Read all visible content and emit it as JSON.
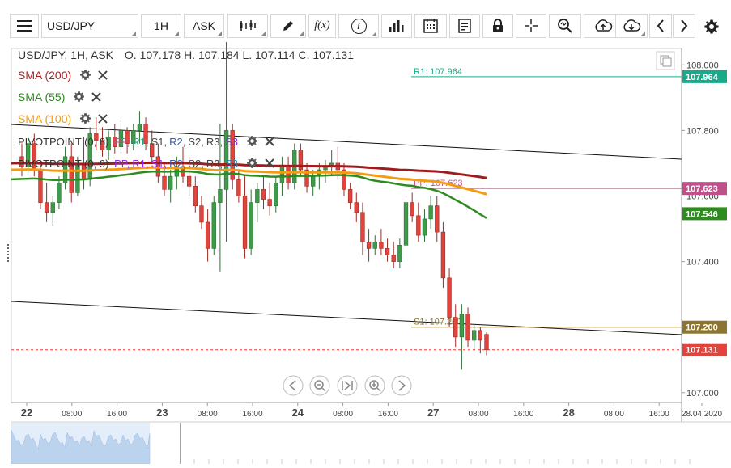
{
  "toolbar": {
    "symbol": "USD/JPY",
    "timeframe": "1H",
    "price_type": "ASK",
    "func_label": "f(x)",
    "info_label": "i"
  },
  "header": {
    "symbol_line": "USD/JPY, 1H, ASK",
    "ohlc": "O. 107.178 H. 107.184 L. 107.114 C. 107.131"
  },
  "indicators": [
    {
      "label": "SMA (200)",
      "color": "#b22222"
    },
    {
      "label": "SMA (55)",
      "color": "#2e8b1f"
    },
    {
      "label": "SMA (100)",
      "color": "#f39c12"
    }
  ],
  "pivots": [
    {
      "label": "PIVOTPOINT (0, 8)",
      "items": [
        "PP,",
        "R1,",
        "S1,",
        "R2,",
        "S2,",
        "R3,",
        "S3"
      ],
      "colors": [
        "#c0508a",
        "#1aaa8a",
        "#444",
        "#3a5ba0",
        "#444",
        "#444",
        "#8a2be2"
      ]
    },
    {
      "label": "PIVOTPOINT (0, 9)",
      "items": [
        "PP,",
        "R1,",
        "S1,",
        "R2,",
        "S2,",
        "R3,",
        "S3"
      ],
      "colors": [
        "#8a2be2",
        "#8a2be2",
        "#8a2be2",
        "#3a5ba0",
        "#444",
        "#444",
        "#1a8fbf"
      ]
    }
  ],
  "chart_data": {
    "type": "candlestick",
    "symbol": "USD/JPY",
    "ylim": [
      106.97,
      108.05
    ],
    "y_ticks": [
      "108.000",
      "107.800",
      "107.600",
      "107.400",
      "107.200",
      "107.000"
    ],
    "y_tick_values": [
      108.0,
      107.8,
      107.6,
      107.4,
      107.2,
      107.0
    ],
    "x_ticks": [
      "22",
      "08:00",
      "16:00",
      "23",
      "08:00",
      "16:00",
      "24",
      "08:00",
      "16:00",
      "27",
      "08:00",
      "16:00",
      "28",
      "08:00",
      "16:00",
      "28.04.2020"
    ],
    "x_tick_major": [
      true,
      false,
      false,
      true,
      false,
      false,
      true,
      false,
      false,
      true,
      false,
      false,
      true,
      false,
      false,
      false
    ],
    "price_labels": [
      {
        "value": "107.964",
        "num": 107.964,
        "color": "#1aaa8a"
      },
      {
        "value": "107.623",
        "num": 107.623,
        "color": "#c0508a"
      },
      {
        "value": "107.546",
        "num": 107.546,
        "color": "#2e8b1f"
      },
      {
        "value": "107.200",
        "num": 107.2,
        "color": "#8b7530"
      },
      {
        "value": "107.131",
        "num": 107.131,
        "color": "#e0443c"
      }
    ],
    "level_labels": [
      {
        "text": "R1: 107.964",
        "num": 107.964,
        "color": "#1aaa8a"
      },
      {
        "text": "PP: 107.623",
        "num": 107.623,
        "color": "#c0508a"
      },
      {
        "text": "S1: 107.200",
        "num": 107.2,
        "color": "#8b7530"
      }
    ],
    "up_color": "#3d9b4a",
    "down_color": "#e0443c",
    "candles": [
      [
        107.72,
        107.76,
        107.66,
        107.69
      ],
      [
        107.69,
        107.78,
        107.67,
        107.76
      ],
      [
        107.76,
        107.79,
        107.66,
        107.68
      ],
      [
        107.68,
        107.71,
        107.56,
        107.58
      ],
      [
        107.58,
        107.64,
        107.52,
        107.55
      ],
      [
        107.55,
        107.6,
        107.51,
        107.58
      ],
      [
        107.58,
        107.66,
        107.56,
        107.64
      ],
      [
        107.64,
        107.75,
        107.62,
        107.72
      ],
      [
        107.72,
        107.76,
        107.58,
        107.61
      ],
      [
        107.61,
        107.72,
        107.6,
        107.7
      ],
      [
        107.7,
        107.78,
        107.62,
        107.65
      ],
      [
        107.65,
        107.81,
        107.63,
        107.79
      ],
      [
        107.79,
        107.84,
        107.74,
        107.77
      ],
      [
        107.77,
        107.81,
        107.72,
        107.74
      ],
      [
        107.74,
        107.8,
        107.71,
        107.78
      ],
      [
        107.78,
        107.82,
        107.73,
        107.75
      ],
      [
        107.75,
        107.83,
        107.73,
        107.8
      ],
      [
        107.8,
        107.81,
        107.73,
        107.76
      ],
      [
        107.76,
        107.82,
        107.74,
        107.8
      ],
      [
        107.8,
        107.86,
        107.76,
        107.82
      ],
      [
        107.82,
        107.84,
        107.74,
        107.76
      ],
      [
        107.76,
        107.8,
        107.7,
        107.72
      ],
      [
        107.72,
        107.76,
        107.64,
        107.66
      ],
      [
        107.66,
        107.7,
        107.6,
        107.62
      ],
      [
        107.62,
        107.68,
        107.58,
        107.66
      ],
      [
        107.66,
        107.72,
        107.62,
        107.69
      ],
      [
        107.69,
        107.75,
        107.64,
        107.66
      ],
      [
        107.66,
        107.72,
        107.6,
        107.63
      ],
      [
        107.63,
        107.66,
        107.55,
        107.57
      ],
      [
        107.57,
        107.6,
        107.5,
        107.52
      ],
      [
        107.52,
        107.56,
        107.4,
        107.44
      ],
      [
        107.44,
        107.6,
        107.42,
        107.58
      ],
      [
        107.58,
        107.82,
        107.37,
        107.62
      ],
      [
        107.62,
        108.07,
        107.46,
        107.8
      ],
      [
        107.8,
        107.82,
        107.62,
        107.65
      ],
      [
        107.65,
        107.68,
        107.58,
        107.6
      ],
      [
        107.6,
        107.66,
        107.41,
        107.44
      ],
      [
        107.44,
        107.62,
        107.42,
        107.58
      ],
      [
        107.58,
        107.64,
        107.52,
        107.62
      ],
      [
        107.62,
        107.66,
        107.56,
        107.59
      ],
      [
        107.59,
        107.64,
        107.54,
        107.57
      ],
      [
        107.57,
        107.66,
        107.55,
        107.64
      ],
      [
        107.64,
        107.72,
        107.6,
        107.69
      ],
      [
        107.69,
        107.72,
        107.62,
        107.64
      ],
      [
        107.64,
        107.76,
        107.62,
        107.74
      ],
      [
        107.74,
        107.76,
        107.66,
        107.68
      ],
      [
        107.68,
        107.7,
        107.61,
        107.63
      ],
      [
        107.63,
        107.68,
        107.6,
        107.66
      ],
      [
        107.66,
        107.7,
        107.62,
        107.68
      ],
      [
        107.68,
        107.71,
        107.64,
        107.69
      ],
      [
        107.69,
        107.74,
        107.66,
        107.7
      ],
      [
        107.7,
        107.75,
        107.65,
        107.68
      ],
      [
        107.68,
        107.7,
        107.6,
        107.62
      ],
      [
        107.62,
        107.64,
        107.56,
        107.58
      ],
      [
        107.58,
        107.61,
        107.52,
        107.55
      ],
      [
        107.55,
        107.58,
        107.42,
        107.46
      ],
      [
        107.46,
        107.5,
        107.4,
        107.44
      ],
      [
        107.44,
        107.48,
        107.42,
        107.46
      ],
      [
        107.46,
        107.5,
        107.42,
        107.44
      ],
      [
        107.44,
        107.47,
        107.4,
        107.42
      ],
      [
        107.42,
        107.46,
        107.38,
        107.4
      ],
      [
        107.4,
        107.47,
        107.38,
        107.45
      ],
      [
        107.45,
        107.6,
        107.43,
        107.58
      ],
      [
        107.58,
        107.61,
        107.52,
        107.54
      ],
      [
        107.54,
        107.58,
        107.46,
        107.48
      ],
      [
        107.48,
        107.56,
        107.46,
        107.53
      ],
      [
        107.53,
        107.6,
        107.5,
        107.57
      ],
      [
        107.57,
        107.6,
        107.46,
        107.49
      ],
      [
        107.49,
        107.52,
        107.32,
        107.35
      ],
      [
        107.35,
        107.38,
        107.2,
        107.23
      ],
      [
        107.23,
        107.27,
        107.14,
        107.17
      ],
      [
        107.17,
        107.27,
        107.07,
        107.24
      ],
      [
        107.24,
        107.26,
        107.14,
        107.16
      ],
      [
        107.16,
        107.21,
        107.13,
        107.19
      ],
      [
        107.19,
        107.2,
        107.12,
        107.16
      ],
      [
        107.178,
        107.184,
        107.114,
        107.131
      ]
    ]
  },
  "nav": [
    "left",
    "zoom-out",
    "center",
    "zoom-in",
    "right"
  ]
}
